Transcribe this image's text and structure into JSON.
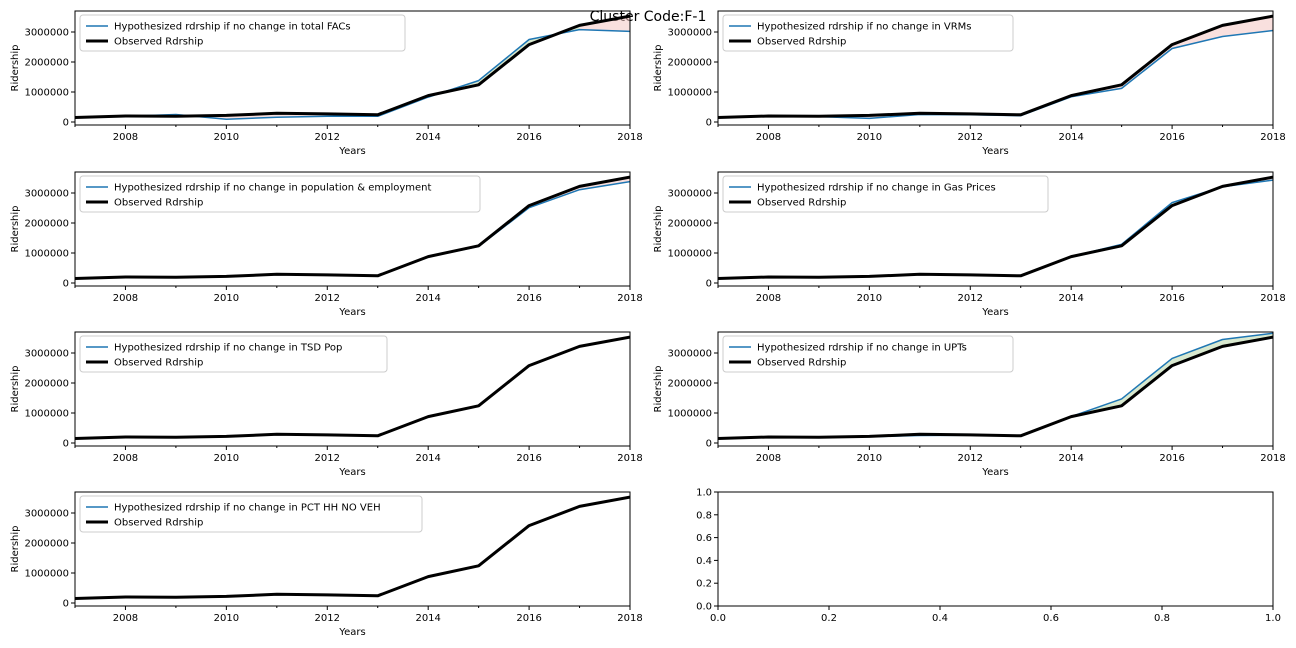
{
  "figure": {
    "suptitle": "Cluster Code:F-1",
    "colors": {
      "hypothesized": "#1f77b4",
      "observed": "#000000",
      "fill_above": "#f4c7c3",
      "fill_below": "#b9d7a8"
    }
  },
  "chart_data": [
    {
      "type": "line",
      "xlabel": "Years",
      "ylabel": "Ridership",
      "xlim": [
        2007,
        2018
      ],
      "ylim": [
        -100000,
        3700000
      ],
      "xticks": [
        2008,
        2010,
        2012,
        2014,
        2016,
        2018
      ],
      "yticks": [
        0,
        1000000,
        2000000,
        3000000
      ],
      "legend": "top-left",
      "x": [
        2007,
        2008,
        2009,
        2010,
        2011,
        2012,
        2013,
        2014,
        2015,
        2016,
        2017,
        2018
      ],
      "series": [
        {
          "name": "Hypothesized rdrship if no change in total FACs",
          "values": [
            150000,
            190000,
            250000,
            90000,
            160000,
            190000,
            190000,
            830000,
            1380000,
            2750000,
            3080000,
            3020000
          ]
        },
        {
          "name": "Observed Rdrship",
          "values": [
            150000,
            200000,
            190000,
            220000,
            290000,
            270000,
            240000,
            880000,
            1240000,
            2580000,
            3220000,
            3530000
          ]
        }
      ]
    },
    {
      "type": "line",
      "xlabel": "Years",
      "ylabel": "Ridership",
      "xlim": [
        2007,
        2018
      ],
      "ylim": [
        -100000,
        3700000
      ],
      "xticks": [
        2008,
        2010,
        2012,
        2014,
        2016,
        2018
      ],
      "yticks": [
        0,
        1000000,
        2000000,
        3000000
      ],
      "legend": "top-left",
      "x": [
        2007,
        2008,
        2009,
        2010,
        2011,
        2012,
        2013,
        2014,
        2015,
        2016,
        2017,
        2018
      ],
      "series": [
        {
          "name": "Hypothesized rdrship if no change in VRMs",
          "values": [
            150000,
            190000,
            180000,
            120000,
            250000,
            240000,
            210000,
            840000,
            1120000,
            2450000,
            2850000,
            3050000
          ]
        },
        {
          "name": "Observed Rdrship",
          "values": [
            150000,
            200000,
            190000,
            220000,
            290000,
            270000,
            240000,
            880000,
            1240000,
            2580000,
            3220000,
            3530000
          ]
        }
      ]
    },
    {
      "type": "line",
      "xlabel": "Years",
      "ylabel": "Ridership",
      "xlim": [
        2007,
        2018
      ],
      "ylim": [
        -100000,
        3700000
      ],
      "xticks": [
        2008,
        2010,
        2012,
        2014,
        2016,
        2018
      ],
      "yticks": [
        0,
        1000000,
        2000000,
        3000000
      ],
      "legend": "top-left",
      "x": [
        2007,
        2008,
        2009,
        2010,
        2011,
        2012,
        2013,
        2014,
        2015,
        2016,
        2017,
        2018
      ],
      "series": [
        {
          "name": "Hypothesized rdrship if no change in population & employment",
          "values": [
            150000,
            200000,
            190000,
            220000,
            290000,
            270000,
            240000,
            870000,
            1220000,
            2510000,
            3110000,
            3380000
          ]
        },
        {
          "name": "Observed Rdrship",
          "values": [
            150000,
            200000,
            190000,
            220000,
            290000,
            270000,
            240000,
            880000,
            1240000,
            2580000,
            3220000,
            3530000
          ]
        }
      ]
    },
    {
      "type": "line",
      "xlabel": "Years",
      "ylabel": "Ridership",
      "xlim": [
        2007,
        2018
      ],
      "ylim": [
        -100000,
        3700000
      ],
      "xticks": [
        2008,
        2010,
        2012,
        2014,
        2016,
        2018
      ],
      "yticks": [
        0,
        1000000,
        2000000,
        3000000
      ],
      "legend": "top-left",
      "x": [
        2007,
        2008,
        2009,
        2010,
        2011,
        2012,
        2013,
        2014,
        2015,
        2016,
        2017,
        2018
      ],
      "series": [
        {
          "name": "Hypothesized rdrship if no change in Gas Prices",
          "values": [
            150000,
            200000,
            190000,
            220000,
            290000,
            270000,
            240000,
            880000,
            1290000,
            2680000,
            3210000,
            3430000
          ]
        },
        {
          "name": "Observed Rdrship",
          "values": [
            150000,
            200000,
            190000,
            220000,
            290000,
            270000,
            240000,
            880000,
            1240000,
            2580000,
            3220000,
            3530000
          ]
        }
      ]
    },
    {
      "type": "line",
      "xlabel": "Years",
      "ylabel": "Ridership",
      "xlim": [
        2007,
        2018
      ],
      "ylim": [
        -100000,
        3700000
      ],
      "xticks": [
        2008,
        2010,
        2012,
        2014,
        2016,
        2018
      ],
      "yticks": [
        0,
        1000000,
        2000000,
        3000000
      ],
      "legend": "top-left",
      "x": [
        2007,
        2008,
        2009,
        2010,
        2011,
        2012,
        2013,
        2014,
        2015,
        2016,
        2017,
        2018
      ],
      "series": [
        {
          "name": "Hypothesized rdrship if no change in TSD Pop",
          "values": [
            150000,
            200000,
            190000,
            220000,
            290000,
            270000,
            240000,
            880000,
            1240000,
            2580000,
            3220000,
            3530000
          ]
        },
        {
          "name": "Observed Rdrship",
          "values": [
            150000,
            200000,
            190000,
            220000,
            290000,
            270000,
            240000,
            880000,
            1240000,
            2580000,
            3220000,
            3530000
          ]
        }
      ]
    },
    {
      "type": "line",
      "xlabel": "Years",
      "ylabel": "Ridership",
      "xlim": [
        2007,
        2018
      ],
      "ylim": [
        -100000,
        3700000
      ],
      "xticks": [
        2008,
        2010,
        2012,
        2014,
        2016,
        2018
      ],
      "yticks": [
        0,
        1000000,
        2000000,
        3000000
      ],
      "legend": "top-left",
      "x": [
        2007,
        2008,
        2009,
        2010,
        2011,
        2012,
        2013,
        2014,
        2015,
        2016,
        2017,
        2018
      ],
      "series": [
        {
          "name": "Hypothesized rdrship if no change in UPTs",
          "values": [
            150000,
            200000,
            190000,
            210000,
            250000,
            260000,
            240000,
            880000,
            1470000,
            2820000,
            3450000,
            3660000
          ]
        },
        {
          "name": "Observed Rdrship",
          "values": [
            150000,
            200000,
            190000,
            220000,
            290000,
            270000,
            240000,
            880000,
            1240000,
            2580000,
            3220000,
            3530000
          ]
        }
      ]
    },
    {
      "type": "line",
      "xlabel": "Years",
      "ylabel": "Ridership",
      "xlim": [
        2007,
        2018
      ],
      "ylim": [
        -100000,
        3700000
      ],
      "xticks": [
        2008,
        2010,
        2012,
        2014,
        2016,
        2018
      ],
      "yticks": [
        0,
        1000000,
        2000000,
        3000000
      ],
      "legend": "top-left",
      "x": [
        2007,
        2008,
        2009,
        2010,
        2011,
        2012,
        2013,
        2014,
        2015,
        2016,
        2017,
        2018
      ],
      "series": [
        {
          "name": "Hypothesized rdrship if no change in PCT HH NO VEH",
          "values": [
            150000,
            200000,
            190000,
            220000,
            290000,
            270000,
            240000,
            880000,
            1240000,
            2580000,
            3220000,
            3530000
          ]
        },
        {
          "name": "Observed Rdrship",
          "values": [
            150000,
            200000,
            190000,
            220000,
            290000,
            270000,
            240000,
            880000,
            1240000,
            2580000,
            3220000,
            3530000
          ]
        }
      ]
    },
    {
      "type": "line",
      "xlabel": "",
      "ylabel": "",
      "xlim": [
        0,
        1
      ],
      "ylim": [
        0,
        1
      ],
      "xticks": [
        0.0,
        0.2,
        0.4,
        0.6,
        0.8,
        1.0
      ],
      "yticks": [
        0.0,
        0.2,
        0.4,
        0.6,
        0.8,
        1.0
      ],
      "tick_format": "decimal1",
      "series": []
    }
  ]
}
